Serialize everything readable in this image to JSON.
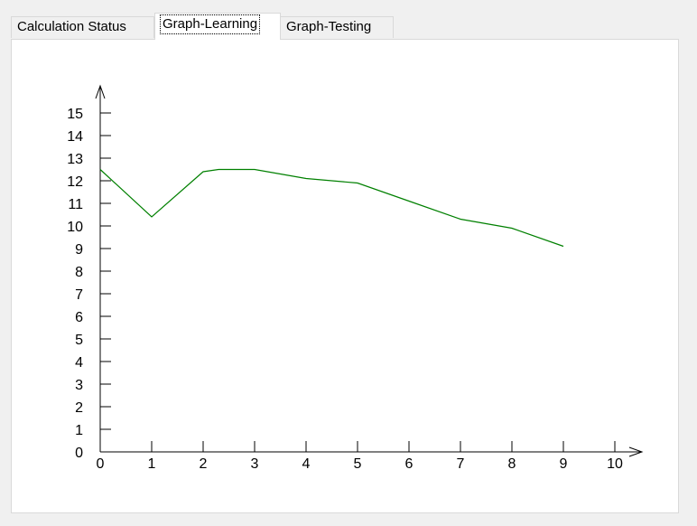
{
  "tabs": [
    {
      "label": "Calculation Status",
      "selected": false
    },
    {
      "label": "Graph-Learning",
      "selected": true
    },
    {
      "label": "Graph-Testing",
      "selected": false
    }
  ],
  "chart_data": {
    "type": "line",
    "title": "",
    "xlabel": "",
    "ylabel": "",
    "xlim": [
      0,
      10
    ],
    "ylim": [
      0,
      15
    ],
    "x_ticks": [
      0,
      1,
      2,
      3,
      4,
      5,
      6,
      7,
      8,
      9,
      10
    ],
    "y_ticks": [
      0,
      1,
      2,
      3,
      4,
      5,
      6,
      7,
      8,
      9,
      10,
      11,
      12,
      13,
      14,
      15
    ],
    "grid": false,
    "series": [
      {
        "color": "#008000",
        "x": [
          0,
          1,
          2,
          2.3,
          3,
          4,
          5,
          6,
          7,
          8,
          9
        ],
        "y": [
          12.5,
          10.4,
          12.4,
          12.5,
          12.5,
          12.1,
          11.9,
          11.1,
          10.3,
          9.9,
          9.1
        ]
      }
    ]
  }
}
